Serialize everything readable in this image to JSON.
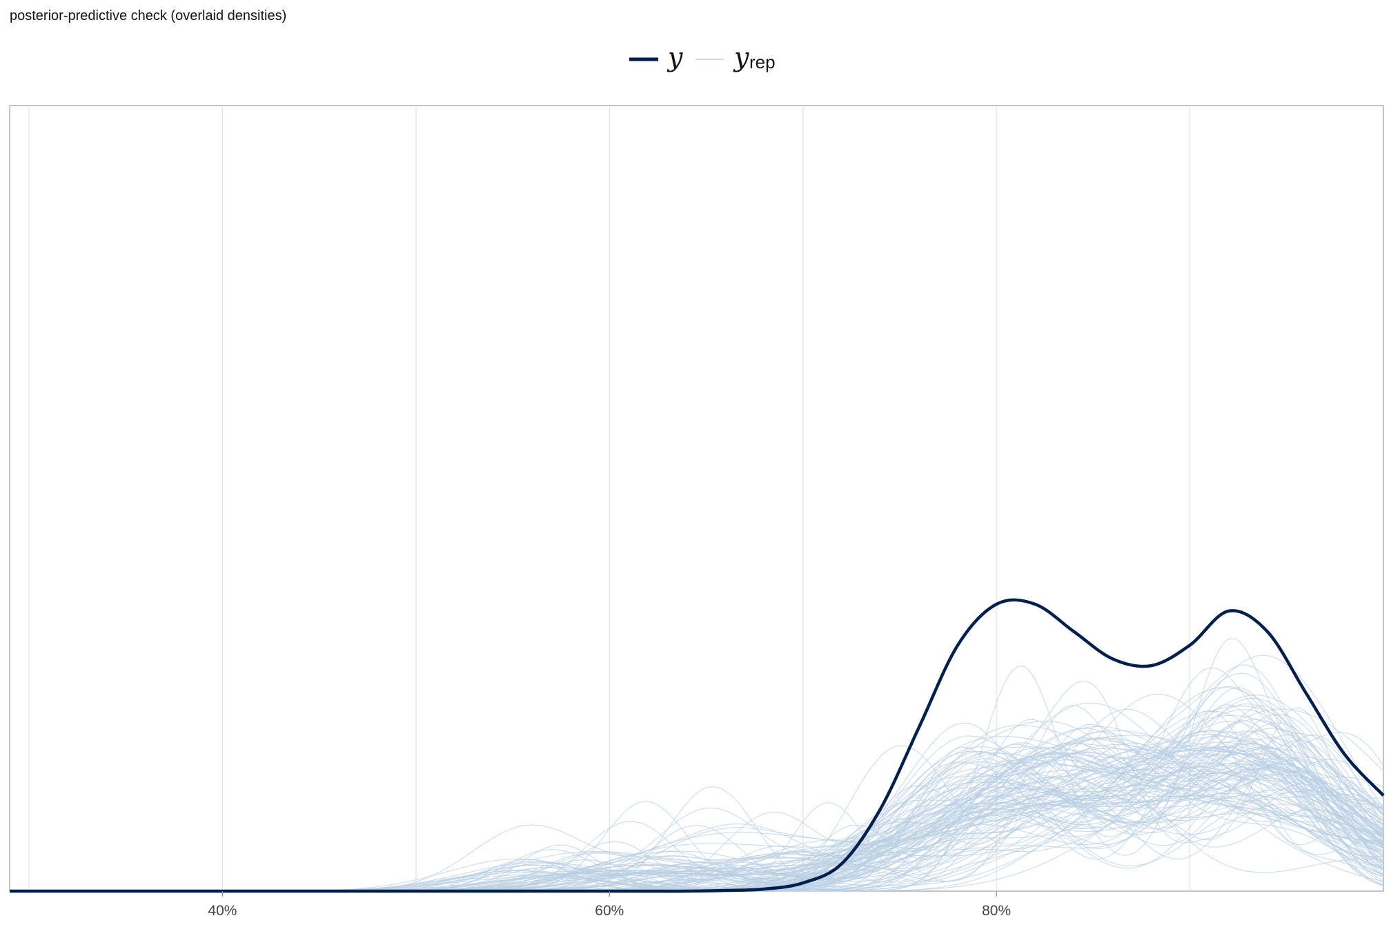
{
  "chart_data": {
    "type": "line",
    "title": "posterior-predictive check (overlaid densities)",
    "xlabel": "",
    "ylabel": "",
    "xlim": [
      0.29,
      1.0
    ],
    "ylim": [
      0,
      1
    ],
    "x_ticks": [
      {
        "value": 0.4,
        "label": "40%"
      },
      {
        "value": 0.6,
        "label": "60%"
      },
      {
        "value": 0.8,
        "label": "80%"
      }
    ],
    "x_gridlines": [
      0.3,
      0.4,
      0.5,
      0.6,
      0.7,
      0.8,
      0.9
    ],
    "y_axis_labels": "none",
    "grid": "vertical",
    "legend": {
      "position": "top-center",
      "entries": [
        {
          "name": "y",
          "label": "y",
          "subscript": "",
          "color": "#011f4b"
        },
        {
          "name": "y_rep",
          "label": "y",
          "subscript": "rep",
          "color": "#b9cfe3"
        }
      ]
    },
    "observed_series": {
      "name": "y",
      "color": "#011f4b",
      "points": [
        [
          0.29,
          0.0
        ],
        [
          0.5,
          0.0
        ],
        [
          0.6,
          0.0
        ],
        [
          0.64,
          0.0
        ],
        [
          0.66,
          0.001
        ],
        [
          0.68,
          0.003
        ],
        [
          0.7,
          0.012
        ],
        [
          0.72,
          0.04
        ],
        [
          0.74,
          0.12
        ],
        [
          0.76,
          0.24
        ],
        [
          0.78,
          0.36
        ],
        [
          0.8,
          0.42
        ],
        [
          0.82,
          0.42
        ],
        [
          0.84,
          0.38
        ],
        [
          0.86,
          0.34
        ],
        [
          0.88,
          0.33
        ],
        [
          0.9,
          0.36
        ],
        [
          0.92,
          0.41
        ],
        [
          0.94,
          0.38
        ],
        [
          0.96,
          0.29
        ],
        [
          0.98,
          0.2
        ],
        [
          1.0,
          0.14
        ]
      ]
    },
    "replicated_series": {
      "name": "y_rep",
      "color": "#b9cfe3",
      "count": 120
    }
  }
}
